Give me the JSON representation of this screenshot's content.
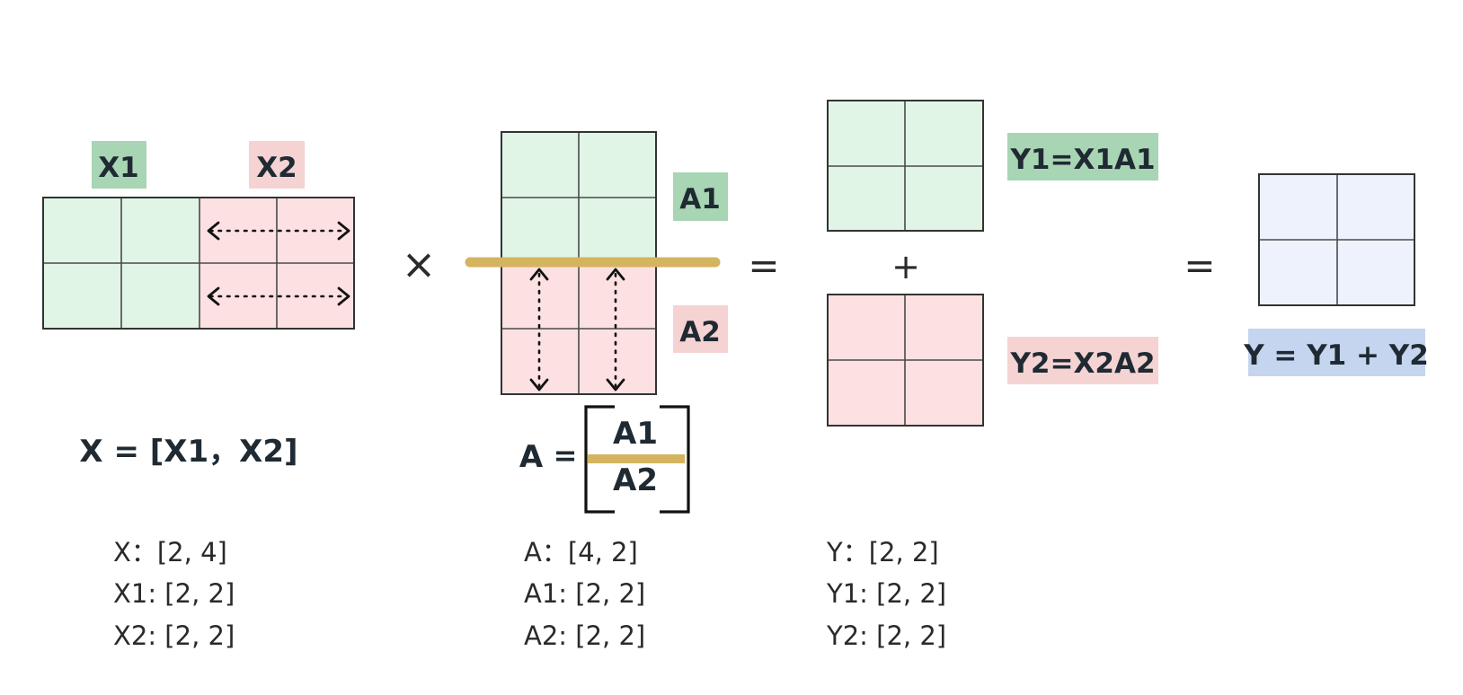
{
  "colors": {
    "green_fill": "#e0f5e6",
    "green_label": "#a8d5b3",
    "pink_fill": "#fde1e2",
    "pink_label": "#f5d3d3",
    "blue_fill": "#eef2fc",
    "blue_label": "#c5d4ef",
    "split_line": "#d4b45f"
  },
  "labels": {
    "x1": "X1",
    "x2": "X2",
    "a1": "A1",
    "a2": "A2",
    "y1": "Y1=X1A1",
    "y2": "Y2=X2A2",
    "y": "Y = Y1 + Y2"
  },
  "operators": {
    "times": "×",
    "equals_1": "=",
    "plus": "+",
    "equals_2": "="
  },
  "formulas": {
    "x": "X = [X1，X2]",
    "a_prefix": "A",
    "a_equals": "=",
    "a_top": "A1",
    "a_bottom": "A2"
  },
  "shapes": {
    "x": [
      "X：[2, 4]",
      "X1: [2, 2]",
      "X2: [2, 2]"
    ],
    "a": [
      "A：[4, 2]",
      "A1: [2, 2]",
      "A2: [2, 2]"
    ],
    "y": [
      "Y：[2, 2]",
      "Y1: [2, 2]",
      "Y2: [2, 2]"
    ]
  }
}
